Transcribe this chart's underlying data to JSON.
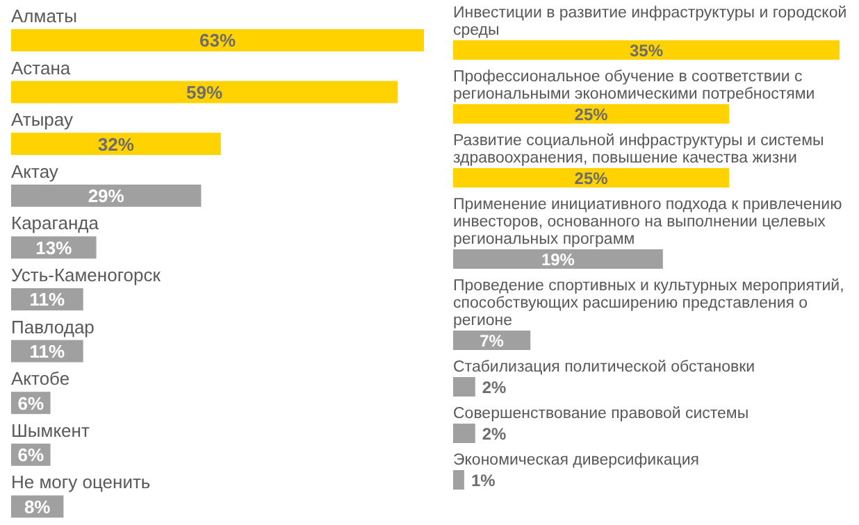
{
  "chart_data": [
    {
      "type": "bar",
      "orientation": "horizontal",
      "categories": [
        "Алматы",
        "Астана",
        "Атырау",
        "Актау",
        "Караганда",
        "Усть-Каменогорск",
        "Павлодар",
        "Актобе",
        "Шымкент",
        "Не могу оценить"
      ],
      "values": [
        63,
        59,
        32,
        29,
        13,
        11,
        11,
        6,
        6,
        8
      ],
      "colors": [
        "#ffd200",
        "#ffd200",
        "#ffd200",
        "#a0a0a0",
        "#a0a0a0",
        "#a0a0a0",
        "#a0a0a0",
        "#a0a0a0",
        "#a0a0a0",
        "#a0a0a0"
      ],
      "value_labels": [
        "63%",
        "59%",
        "32%",
        "29%",
        "13%",
        "11%",
        "11%",
        "6%",
        "6%",
        "8%"
      ]
    },
    {
      "type": "bar",
      "orientation": "horizontal",
      "categories": [
        "Инвестиции в развитие инфраструктуры и городской среды",
        "Профессиональное обучение в соответствии с региональными экономическими потребностями",
        "Развитие социальной инфраструктуры и системы здравоохранения, повышение качества жизни",
        "Применение инициативного подхода к привлечению инвесторов, основанного на выполнении целевых региональных программ",
        "Проведение спортивных и культурных мероприятий, способствующих расширению представления о регионе",
        "Стабилизация политической обстановки",
        "Совершенствование правовой системы",
        "Экономическая диверсификация"
      ],
      "values": [
        35,
        25,
        25,
        19,
        7,
        2,
        2,
        1
      ],
      "colors": [
        "#ffd200",
        "#ffd200",
        "#ffd200",
        "#a0a0a0",
        "#a0a0a0",
        "#a0a0a0",
        "#a0a0a0",
        "#a0a0a0"
      ],
      "value_labels": [
        "35%",
        "25%",
        "25%",
        "19%",
        "7%",
        "2%",
        "2%",
        "1%"
      ]
    }
  ]
}
